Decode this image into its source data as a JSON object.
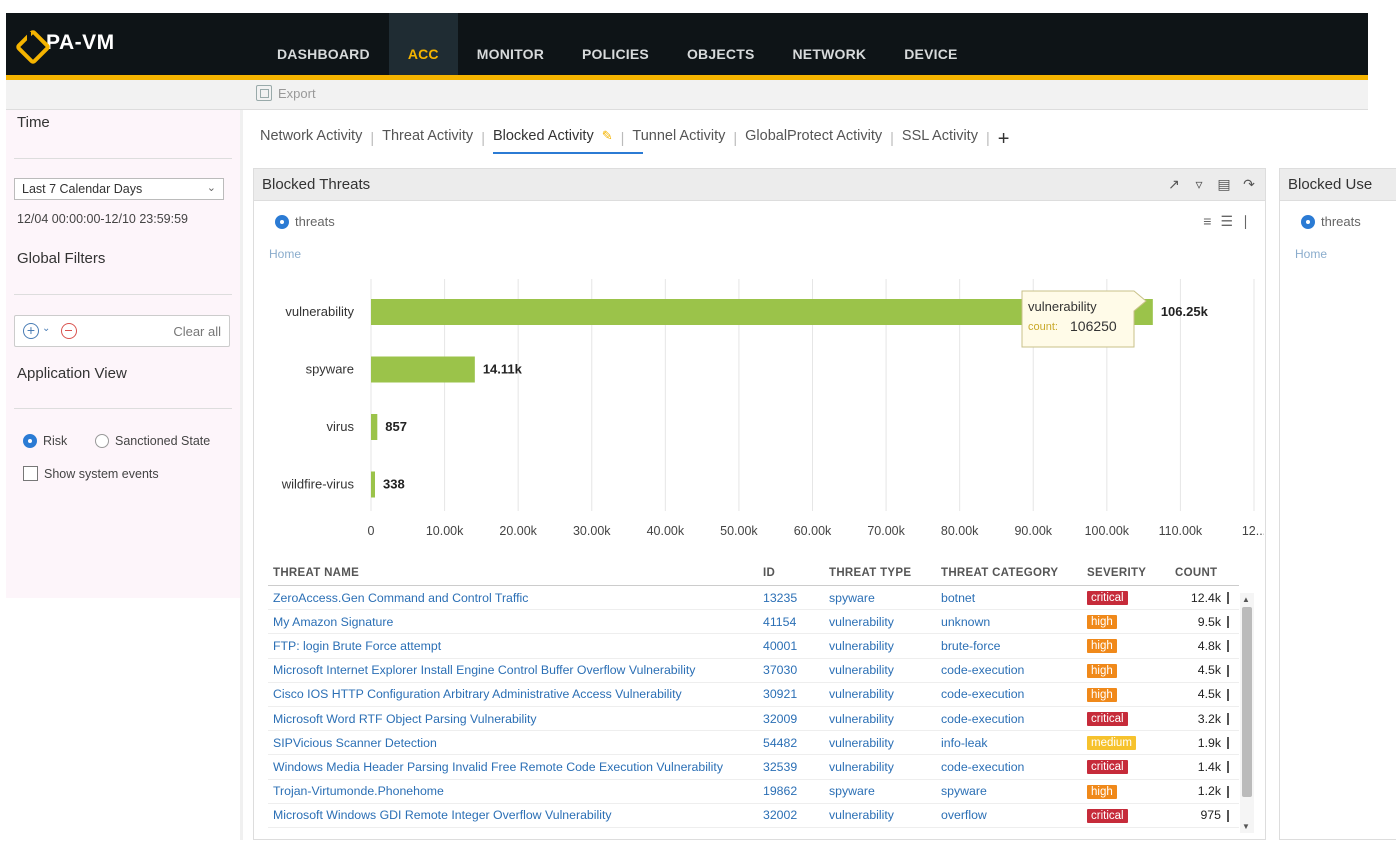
{
  "app": {
    "logo_text": "PA-VM",
    "nav": [
      {
        "label": "DASHBOARD",
        "active": false
      },
      {
        "label": "ACC",
        "active": true
      },
      {
        "label": "MONITOR",
        "active": false
      },
      {
        "label": "POLICIES",
        "active": false
      },
      {
        "label": "OBJECTS",
        "active": false
      },
      {
        "label": "NETWORK",
        "active": false
      },
      {
        "label": "DEVICE",
        "active": false
      }
    ],
    "accent_color": "#f5b400"
  },
  "toolbar": {
    "export_label": "Export"
  },
  "sidebar": {
    "time_title": "Time",
    "time_select": "Last 7 Calendar Days",
    "date_range": "12/04 00:00:00-12/10 23:59:59",
    "global_filters_title": "Global Filters",
    "clear_all": "Clear all",
    "app_view_title": "Application View",
    "risk_label": "Risk",
    "sanctioned_label": "Sanctioned State",
    "show_system_events": "Show system events"
  },
  "tabs": [
    {
      "label": "Network Activity",
      "active": false
    },
    {
      "label": "Threat Activity",
      "active": false
    },
    {
      "label": "Blocked Activity",
      "active": true
    },
    {
      "label": "Tunnel Activity",
      "active": false
    },
    {
      "label": "GlobalProtect Activity",
      "active": false
    },
    {
      "label": "SSL Activity",
      "active": false
    }
  ],
  "panel": {
    "title": "Blocked Threats",
    "view_option": "threats",
    "home_link": "Home"
  },
  "right_panel": {
    "title": "Blocked Use",
    "view_option": "threats",
    "home_link": "Home"
  },
  "chart_data": {
    "type": "bar",
    "orientation": "horizontal",
    "categories": [
      "vulnerability",
      "spyware",
      "virus",
      "wildfire-virus"
    ],
    "values": [
      106250,
      14110,
      857,
      338
    ],
    "value_labels": [
      "106.25k",
      "14.11k",
      "857",
      "338"
    ],
    "ticks": [
      "0",
      "10.00k",
      "20.00k",
      "30.00k",
      "40.00k",
      "50.00k",
      "60.00k",
      "70.00k",
      "80.00k",
      "90.00k",
      "100.00k",
      "110.00k",
      "12..."
    ],
    "xlim": [
      0,
      120000
    ],
    "bar_color": "#9bc34a",
    "grid": true,
    "tooltip": {
      "title": "vulnerability",
      "label": "count:",
      "value": "106250"
    }
  },
  "table": {
    "columns": [
      "THREAT NAME",
      "ID",
      "THREAT TYPE",
      "THREAT CATEGORY",
      "SEVERITY",
      "COUNT"
    ],
    "rows": [
      {
        "name": "ZeroAccess.Gen Command and Control Traffic",
        "id": "13235",
        "type": "spyware",
        "category": "botnet",
        "severity": "critical",
        "count": "12.4k"
      },
      {
        "name": "My Amazon Signature",
        "id": "41154",
        "type": "vulnerability",
        "category": "unknown",
        "severity": "high",
        "count": "9.5k"
      },
      {
        "name": "FTP: login Brute Force attempt",
        "id": "40001",
        "type": "vulnerability",
        "category": "brute-force",
        "severity": "high",
        "count": "4.8k"
      },
      {
        "name": "Microsoft Internet Explorer Install Engine Control Buffer Overflow Vulnerability",
        "id": "37030",
        "type": "vulnerability",
        "category": "code-execution",
        "severity": "high",
        "count": "4.5k"
      },
      {
        "name": "Cisco IOS HTTP Configuration Arbitrary Administrative Access Vulnerability",
        "id": "30921",
        "type": "vulnerability",
        "category": "code-execution",
        "severity": "high",
        "count": "4.5k"
      },
      {
        "name": "Microsoft Word RTF Object Parsing Vulnerability",
        "id": "32009",
        "type": "vulnerability",
        "category": "code-execution",
        "severity": "critical",
        "count": "3.2k"
      },
      {
        "name": "SIPVicious Scanner Detection",
        "id": "54482",
        "type": "vulnerability",
        "category": "info-leak",
        "severity": "medium",
        "count": "1.9k"
      },
      {
        "name": "Windows Media Header Parsing Invalid Free Remote Code Execution Vulnerability",
        "id": "32539",
        "type": "vulnerability",
        "category": "code-execution",
        "severity": "critical",
        "count": "1.4k"
      },
      {
        "name": "Trojan-Virtumonde.Phonehome",
        "id": "19862",
        "type": "spyware",
        "category": "spyware",
        "severity": "high",
        "count": "1.2k"
      },
      {
        "name": "Microsoft Windows GDI Remote Integer Overflow Vulnerability",
        "id": "32002",
        "type": "vulnerability",
        "category": "overflow",
        "severity": "critical",
        "count": "975"
      }
    ]
  }
}
